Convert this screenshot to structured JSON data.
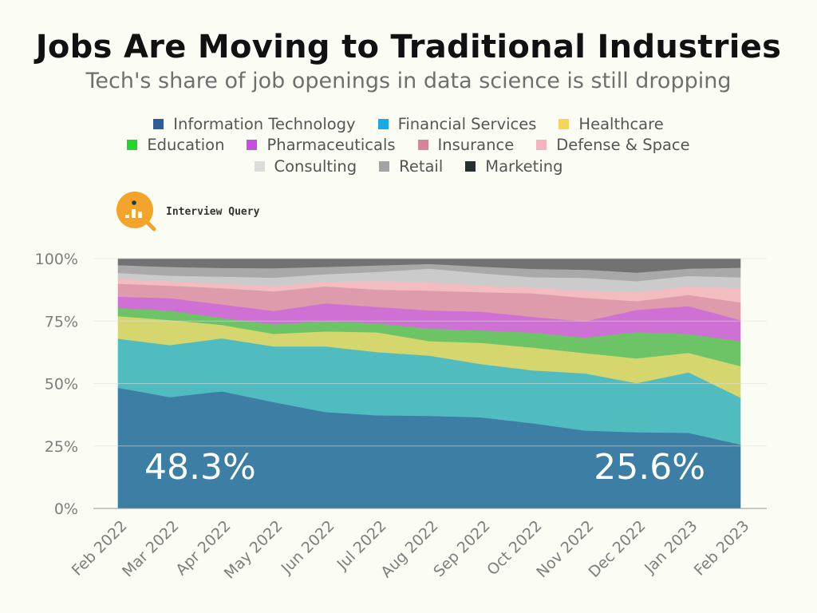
{
  "title": "Jobs Are Moving to Traditional Industries",
  "subtitle": "Tech's share of job openings in data science is still dropping",
  "brand": {
    "name": "Interview Query"
  },
  "legend": [
    [
      "Information Technology",
      "Financial Services",
      "Healthcare"
    ],
    [
      "Education",
      "Pharmaceuticals",
      "Insurance",
      "Defense & Space"
    ],
    [
      "Consulting",
      "Retail",
      "Marketing"
    ]
  ],
  "chart_data": {
    "type": "area",
    "stacked": true,
    "categories": [
      "Feb 2022",
      "Mar 2022",
      "Apr 2022",
      "May 2022",
      "Jun 2022",
      "Jul 2022",
      "Aug 2022",
      "Sep 2022",
      "Oct 2022",
      "Nov 2022",
      "Dec 2022",
      "Jan 2023",
      "Feb 2023"
    ],
    "yticks": [
      "0%",
      "25%",
      "50%",
      "75%",
      "100%"
    ],
    "ylim": [
      0,
      100
    ],
    "grid": true,
    "annotations": [
      "48.3%",
      "25.6%"
    ],
    "series": [
      {
        "name": "Information Technology",
        "color": "#3d7fa4",
        "legend_color": "#2e5c97",
        "values": [
          48.3,
          44.6,
          46.9,
          42.6,
          38.6,
          37.3,
          37.1,
          36.5,
          34.1,
          31.2,
          30.5,
          30.3,
          25.6
        ]
      },
      {
        "name": "Financial Services",
        "color": "#50bcc0",
        "legend_color": "#1ba8e6",
        "values": [
          19.7,
          20.8,
          21.2,
          22.3,
          26.3,
          25.3,
          24.1,
          21.3,
          21.2,
          22.9,
          19.7,
          24.2,
          18.8
        ]
      },
      {
        "name": "Healthcare",
        "color": "#d5d76e",
        "legend_color": "#f5d45e",
        "values": [
          9.0,
          10.0,
          5.4,
          5.0,
          6.0,
          7.9,
          5.8,
          8.5,
          9.1,
          8.1,
          9.9,
          7.8,
          12.6
        ]
      },
      {
        "name": "Education",
        "color": "#6cc466",
        "legend_color": "#22d42d",
        "values": [
          3.3,
          3.8,
          2.8,
          3.8,
          4.1,
          3.6,
          5.0,
          5.0,
          6.0,
          6.2,
          10.5,
          7.5,
          10.0
        ]
      },
      {
        "name": "Pharmaceuticals",
        "color": "#cf70d5",
        "legend_color": "#c74fe0",
        "values": [
          4.5,
          5.0,
          5.4,
          5.4,
          7.1,
          6.6,
          7.3,
          7.5,
          6.3,
          6.5,
          8.9,
          11.2,
          8.4
        ]
      },
      {
        "name": "Insurance",
        "color": "#dd9bab",
        "legend_color": "#d4849a",
        "values": [
          5.2,
          5.0,
          6.5,
          7.8,
          6.8,
          6.9,
          7.9,
          7.8,
          9.4,
          9.4,
          3.5,
          4.5,
          7.1
        ]
      },
      {
        "name": "Defense & Space",
        "color": "#f3bcc0",
        "legend_color": "#f5b4bd",
        "values": [
          1.9,
          1.8,
          1.8,
          2.1,
          1.9,
          3.5,
          3.3,
          2.7,
          2.3,
          3.0,
          3.6,
          3.4,
          5.6
        ]
      },
      {
        "name": "Consulting",
        "color": "#cbcbcb",
        "legend_color": "#dcdcdc",
        "values": [
          2.4,
          2.2,
          2.8,
          3.4,
          3.0,
          3.6,
          5.5,
          4.9,
          4.2,
          5.0,
          4.4,
          4.2,
          4.4
        ]
      },
      {
        "name": "Retail",
        "color": "#a9a9a9",
        "legend_color": "#a3a3a3",
        "values": [
          3.1,
          3.5,
          3.5,
          3.8,
          2.9,
          2.6,
          1.9,
          2.6,
          3.3,
          3.3,
          3.4,
          2.9,
          3.9
        ]
      },
      {
        "name": "Marketing",
        "color": "#727272",
        "legend_color": "#27302f",
        "values": [
          2.6,
          3.3,
          3.7,
          3.8,
          3.3,
          2.7,
          2.1,
          3.2,
          4.1,
          4.4,
          5.6,
          4.0,
          3.6
        ]
      }
    ]
  }
}
